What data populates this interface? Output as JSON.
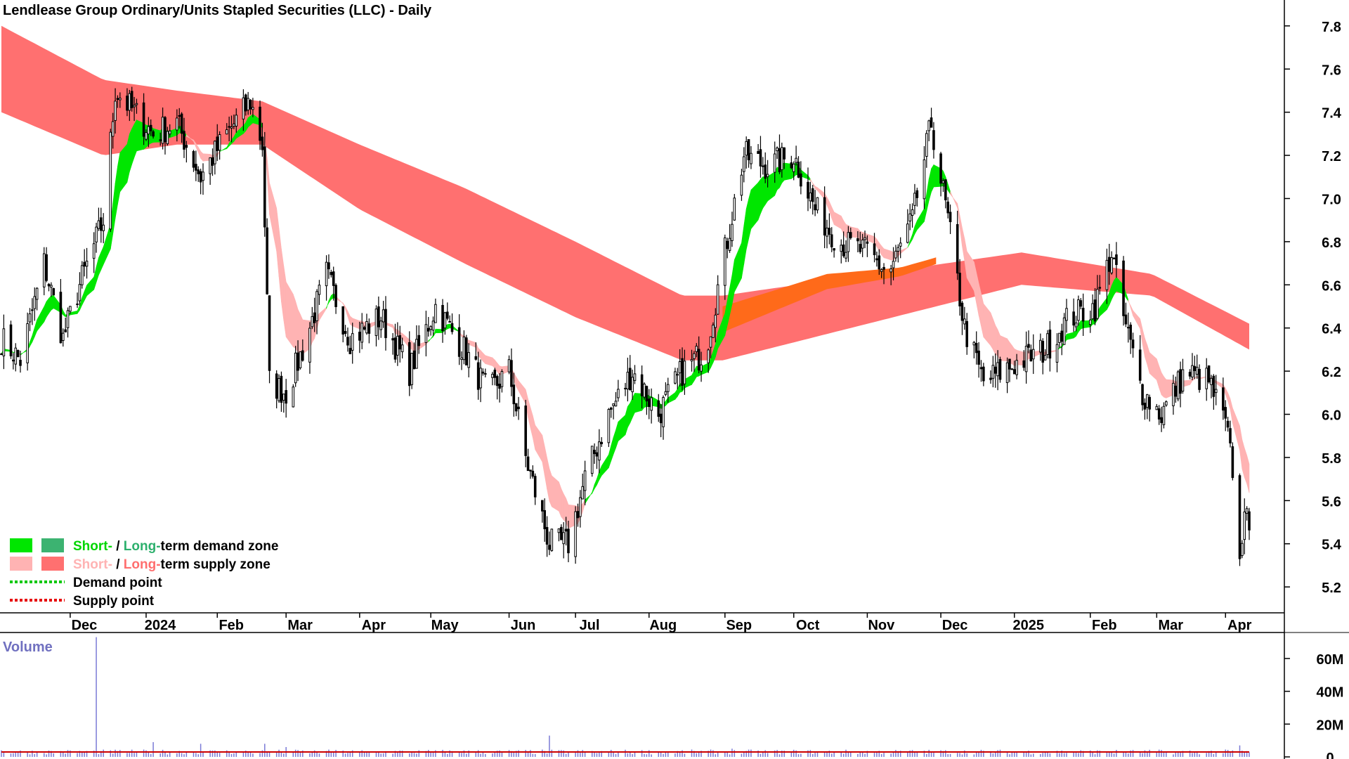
{
  "chart_data": {
    "type": "candlestick",
    "title": "Lendlease Group Ordinary/Units Stapled Securities (LLC) - Daily",
    "price_axis": {
      "ticks": [
        "7.8",
        "7.6",
        "7.4",
        "7.2",
        "7.0",
        "6.8",
        "6.6",
        "6.4",
        "6.2",
        "6.0",
        "5.8",
        "5.6",
        "5.4",
        "5.2"
      ],
      "range": [
        5.08,
        7.92
      ]
    },
    "month_labels": [
      "Dec",
      "2024",
      "Feb",
      "Mar",
      "Apr",
      "May",
      "Jun",
      "Jul",
      "Aug",
      "Sep",
      "Oct",
      "Nov",
      "Dec",
      "2025",
      "Feb",
      "Mar",
      "Apr"
    ],
    "month_starts": [
      "2023-12-01",
      "2024-01-02",
      "2024-02-01",
      "2024-03-01",
      "2024-04-01",
      "2024-05-01",
      "2024-06-03",
      "2024-07-01",
      "2024-08-01",
      "2024-09-02",
      "2024-10-01",
      "2024-11-01",
      "2024-12-02",
      "2025-01-02",
      "2025-02-03",
      "2025-03-03",
      "2025-04-01"
    ],
    "date_range": [
      "2023-11-02",
      "2025-04-11"
    ],
    "price_keypoints": [
      [
        "2023-11-02",
        6.35
      ],
      [
        "2023-11-10",
        6.25
      ],
      [
        "2023-11-20",
        6.7
      ],
      [
        "2023-11-28",
        6.35
      ],
      [
        "2023-12-05",
        6.6
      ],
      [
        "2023-12-15",
        6.9
      ],
      [
        "2023-12-20",
        7.5
      ],
      [
        "2024-01-05",
        7.3
      ],
      [
        "2024-01-15",
        7.35
      ],
      [
        "2024-01-25",
        7.1
      ],
      [
        "2024-02-05",
        7.3
      ],
      [
        "2024-02-15",
        7.45
      ],
      [
        "2024-02-20",
        7.25
      ],
      [
        "2024-02-23",
        6.15
      ],
      [
        "2024-03-01",
        6.1
      ],
      [
        "2024-03-08",
        6.3
      ],
      [
        "2024-03-18",
        6.65
      ],
      [
        "2024-03-28",
        6.35
      ],
      [
        "2024-04-10",
        6.45
      ],
      [
        "2024-04-22",
        6.2
      ],
      [
        "2024-05-03",
        6.5
      ],
      [
        "2024-05-15",
        6.3
      ],
      [
        "2024-05-25",
        6.1
      ],
      [
        "2024-06-03",
        6.2
      ],
      [
        "2024-06-10",
        5.8
      ],
      [
        "2024-06-20",
        5.4
      ],
      [
        "2024-06-28",
        5.4
      ],
      [
        "2024-07-05",
        5.7
      ],
      [
        "2024-07-15",
        6.0
      ],
      [
        "2024-07-25",
        6.2
      ],
      [
        "2024-08-05",
        6.0
      ],
      [
        "2024-08-15",
        6.2
      ],
      [
        "2024-08-25",
        6.3
      ],
      [
        "2024-09-01",
        6.7
      ],
      [
        "2024-09-10",
        7.2
      ],
      [
        "2024-09-20",
        7.15
      ],
      [
        "2024-10-01",
        7.2
      ],
      [
        "2024-10-10",
        6.95
      ],
      [
        "2024-10-20",
        6.8
      ],
      [
        "2024-11-01",
        6.75
      ],
      [
        "2024-11-10",
        6.65
      ],
      [
        "2024-11-20",
        6.9
      ],
      [
        "2024-11-28",
        7.35
      ],
      [
        "2024-12-05",
        6.9
      ],
      [
        "2024-12-12",
        6.4
      ],
      [
        "2024-12-20",
        6.15
      ],
      [
        "2025-01-05",
        6.25
      ],
      [
        "2025-01-15",
        6.3
      ],
      [
        "2025-01-25",
        6.45
      ],
      [
        "2025-02-05",
        6.5
      ],
      [
        "2025-02-12",
        6.75
      ],
      [
        "2025-02-17",
        6.45
      ],
      [
        "2025-02-25",
        6.1
      ],
      [
        "2025-03-05",
        6.0
      ],
      [
        "2025-03-15",
        6.2
      ],
      [
        "2025-03-25",
        6.15
      ],
      [
        "2025-04-01",
        5.95
      ],
      [
        "2025-04-04",
        5.75
      ],
      [
        "2025-04-07",
        5.3
      ],
      [
        "2025-04-09",
        5.6
      ],
      [
        "2025-04-11",
        5.4
      ]
    ],
    "long_term_supply_band": [
      [
        "2023-11-02",
        7.4,
        7.8
      ],
      [
        "2023-12-15",
        7.2,
        7.55
      ],
      [
        "2024-01-15",
        7.25,
        7.5
      ],
      [
        "2024-02-20",
        7.25,
        7.45
      ],
      [
        "2024-04-01",
        6.95,
        7.25
      ],
      [
        "2024-05-15",
        6.7,
        7.05
      ],
      [
        "2024-07-01",
        6.45,
        6.8
      ],
      [
        "2024-08-15",
        6.25,
        6.55
      ],
      [
        "2024-09-01",
        6.25,
        6.55
      ],
      [
        "2025-01-05",
        6.6,
        6.75
      ],
      [
        "2025-03-01",
        6.55,
        6.65
      ],
      [
        "2025-04-11",
        6.3,
        6.42
      ]
    ],
    "long_term_demand_band": [
      [
        "2024-09-01",
        6.38,
        6.5
      ],
      [
        "2024-10-15",
        6.58,
        6.65
      ],
      [
        "2024-11-15",
        6.64,
        6.68
      ],
      [
        "2024-12-01",
        6.7,
        6.73
      ]
    ],
    "short_term_band_shading": {
      "supply_colour": "#ffb3b3",
      "demand_colour": "#00e600",
      "transition_colour": "#ff6a1a"
    },
    "volume_axis": {
      "ticks": [
        "60M",
        "40M",
        "20M",
        "0"
      ],
      "range": [
        0,
        75
      ]
    },
    "volume_spikes": [
      [
        "2023-11-02",
        4
      ],
      [
        "2023-12-12",
        73
      ],
      [
        "2024-01-05",
        9
      ],
      [
        "2024-01-25",
        8
      ],
      [
        "2024-02-21",
        8
      ],
      [
        "2024-03-01",
        6
      ],
      [
        "2024-05-15",
        4
      ],
      [
        "2024-06-20",
        13
      ],
      [
        "2024-09-05",
        5
      ],
      [
        "2025-04-07",
        7
      ]
    ],
    "volume_baseline_M": 1.5
  },
  "legend": [
    {
      "prefix": "Short-",
      "sep": " / ",
      "word": "Long-",
      "suffix": "term demand zone",
      "prefix_color": "#00d600",
      "word_color": "#2db06d",
      "swatch_short": "#00e600",
      "swatch_long": "#3cb371"
    },
    {
      "prefix": "Short-",
      "sep": " / ",
      "word": "Long-",
      "suffix": "term supply zone",
      "prefix_color": "#ffb3b3",
      "word_color": "#ff6f6f",
      "swatch_short": "#ffb3b3",
      "swatch_long": "#ff7070"
    }
  ],
  "legend_points": [
    {
      "label": "Demand point",
      "color": "#00c800"
    },
    {
      "label": "Supply point",
      "color": "#e60000"
    }
  ],
  "volume_label": "Volume",
  "colors": {
    "candle": "#000000",
    "volume_bar": "#7a7ad6",
    "volume_line": "#cc0000",
    "axis": "#000000",
    "volume_label": "#7070c0"
  }
}
